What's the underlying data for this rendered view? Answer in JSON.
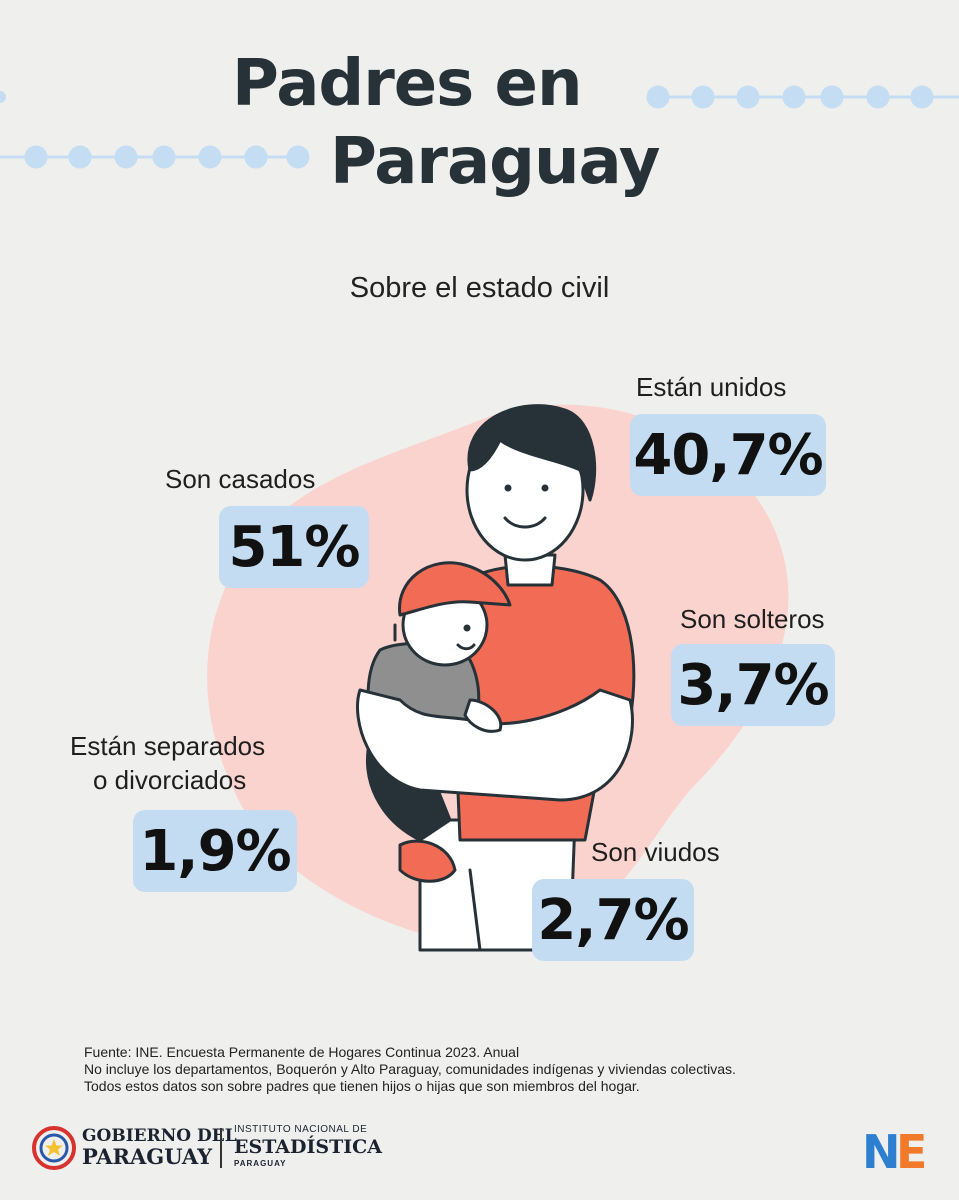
{
  "header": {
    "title_line1": "Padres en",
    "title_line2": "Paraguay",
    "subtitle": "Sobre el estado civil"
  },
  "chart_data": {
    "type": "table",
    "title": "Padres en Paraguay",
    "subtitle": "Sobre el estado civil",
    "unit": "%",
    "categories": [
      "Están unidos",
      "Son casados",
      "Son solteros",
      "Están separados o divorciados",
      "Son viudos"
    ],
    "values": [
      40.7,
      51,
      3.7,
      1.9,
      2.7
    ],
    "items": [
      {
        "key": "unidos",
        "label": "Están unidos",
        "value": 40.7,
        "display": "40,7%"
      },
      {
        "key": "casados",
        "label": "Son casados",
        "value": 51,
        "display": "51%"
      },
      {
        "key": "solteros",
        "label": "Son solteros",
        "value": 3.7,
        "display": "3,7%"
      },
      {
        "key": "separados",
        "label_line1": "Están separados",
        "label_line2": "o divorciados",
        "value": 1.9,
        "display": "1,9%"
      },
      {
        "key": "viudos",
        "label": "Son viudos",
        "value": 2.7,
        "display": "2,7%"
      }
    ]
  },
  "footnote": {
    "line1": "Fuente: INE. Encuesta Permanente de Hogares Continua 2023. Anual",
    "line2": "No incluye los departamentos, Boquerón y Alto Paraguay, comunidades indígenas y viviendas colectivas.",
    "line3": "Todos estos datos son sobre padres que tienen hijos o hijas que son miembros del hogar."
  },
  "logos": {
    "gov_line1": "GOBIERNO DEL",
    "gov_line2": "PARAGUAY",
    "ine_line1": "INSTITUTO NACIONAL DE",
    "ine_line2": "ESTADÍSTICA",
    "ine_line3": "PARAGUAY",
    "ine_mark": "NE"
  },
  "colors": {
    "background": "#efefee",
    "value_box": "#c3dcf2",
    "blob": "#fbd3ce",
    "shirt": "#f26b55",
    "decor_dots": "#c5ddf3",
    "ine_blue": "#2f7fd1",
    "ine_orange": "#f07a2a"
  }
}
